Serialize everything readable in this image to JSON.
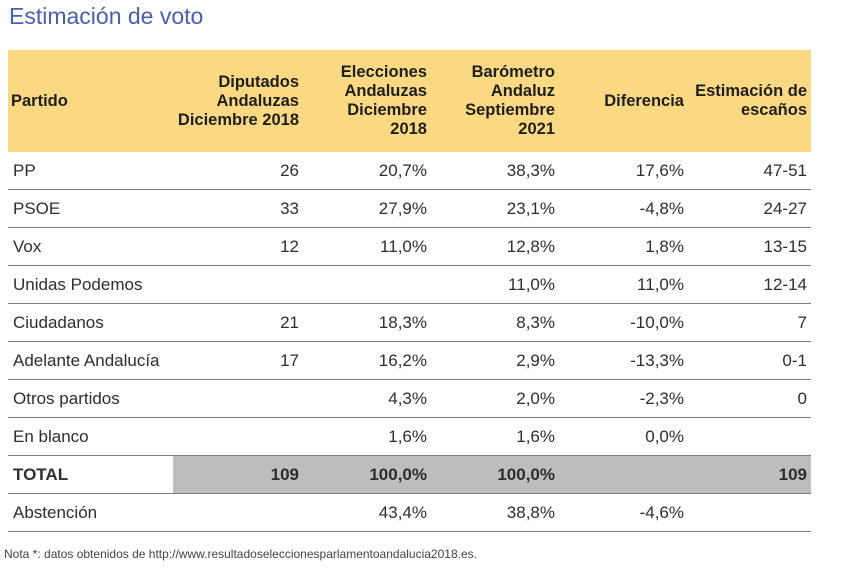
{
  "title": "Estimación de voto",
  "headers": [
    "Partido",
    "Diputados Andaluzas Diciembre 2018",
    "Elecciones Andaluzas Diciembre 2018",
    "Barómetro Andaluz Septiembre 2021",
    "Diferencia",
    "Estimación de escaños"
  ],
  "rows": [
    [
      "PP",
      "26",
      "20,7%",
      "38,3%",
      "17,6%",
      "47-51"
    ],
    [
      "PSOE",
      "33",
      "27,9%",
      "23,1%",
      "-4,8%",
      "24-27"
    ],
    [
      "Vox",
      "12",
      "11,0%",
      "12,8%",
      "1,8%",
      "13-15"
    ],
    [
      "Unidas Podemos",
      "",
      "",
      "11,0%",
      "11,0%",
      "12-14"
    ],
    [
      "Ciudadanos",
      "21",
      "18,3%",
      "8,3%",
      "-10,0%",
      "7"
    ],
    [
      "Adelante Andalucía",
      "17",
      "16,2%",
      "2,9%",
      "-13,3%",
      "0-1"
    ],
    [
      "Otros partidos",
      "",
      "4,3%",
      "2,0%",
      "-2,3%",
      "0"
    ],
    [
      "En blanco",
      "",
      "1,6%",
      "1,6%",
      "0,0%",
      ""
    ]
  ],
  "total": [
    "TOTAL",
    "109",
    "100,0%",
    "100,0%",
    "",
    "109"
  ],
  "abstention": [
    "Abstención",
    "",
    "43,4%",
    "38,8%",
    "-4,6%",
    ""
  ],
  "note": "Nota *: datos obtenidos de http://www.resultadoseleccionesparlamentoandalucia2018.es.",
  "colors": {
    "title": "#4b5fae",
    "header_bg": "#fbd982",
    "total_bg": "#bdbdbd"
  }
}
